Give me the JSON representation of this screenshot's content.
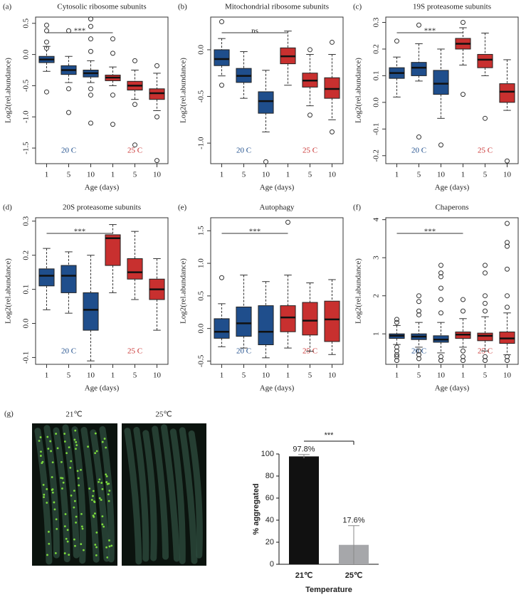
{
  "chart_data": [
    {
      "type": "box",
      "panel": "(a)",
      "title": "Cytosolic ribosome subunits",
      "xlabel": "Age (days)",
      "ylabel": "Log2(rel.abundance)",
      "annotation": "***",
      "categories": [
        "1",
        "5",
        "10",
        "1",
        "5",
        "10"
      ],
      "ylim": [
        -1.75,
        0.6
      ],
      "yticks": [
        -1.5,
        {
          "value": -1,
          "label": "-1.0"
        },
        -0.5,
        {
          "value": 0,
          "label": "0.0"
        },
        0.5
      ],
      "series": [
        {
          "name": "20 C",
          "color": "#1f4e8c",
          "boxes": [
            {
              "whislo": -0.27,
              "q1": -0.13,
              "med": -0.08,
              "q3": -0.03,
              "whishi": 0.13,
              "fliers": [
                0.47,
                0.38,
                0.2,
                0.1,
                -0.6
              ]
            },
            {
              "whislo": -0.45,
              "q1": -0.32,
              "med": -0.25,
              "q3": -0.18,
              "whishi": -0.03,
              "fliers": [
                0.38,
                -0.55,
                -0.93
              ]
            },
            {
              "whislo": -0.45,
              "q1": -0.36,
              "med": -0.3,
              "q3": -0.25,
              "whishi": -0.1,
              "fliers": [
                0.57,
                0.45,
                0.25,
                0.05,
                -0.55,
                -0.65,
                -1.1
              ]
            }
          ]
        },
        {
          "name": "25 C",
          "color": "#c8302f",
          "boxes": [
            {
              "whislo": -0.5,
              "q1": -0.42,
              "med": -0.37,
              "q3": -0.33,
              "whishi": -0.2,
              "fliers": [
                0.25,
                0.02,
                -0.65,
                -1.12
              ]
            },
            {
              "whislo": -0.72,
              "q1": -0.57,
              "med": -0.5,
              "q3": -0.43,
              "whishi": -0.25,
              "fliers": [
                -0.1,
                -0.8,
                -1.45
              ]
            },
            {
              "whislo": -0.9,
              "q1": -0.72,
              "med": -0.62,
              "q3": -0.55,
              "whishi": -0.3,
              "fliers": [
                -0.18,
                -1.0,
                -1.7
              ]
            }
          ]
        }
      ]
    },
    {
      "type": "box",
      "panel": "(b)",
      "title": "Mitochondrial ribosome subunits",
      "xlabel": "Age (days)",
      "ylabel": "Log2(rel.abundance)",
      "annotation": "ns",
      "categories": [
        "1",
        "5",
        "10",
        "1",
        "5",
        "10"
      ],
      "ylim": [
        -1.22,
        0.35
      ],
      "yticks": [
        {
          "value": -1,
          "label": "-1.0"
        },
        -0.5,
        {
          "value": 0,
          "label": "0.0"
        }
      ],
      "series": [
        {
          "name": "20 C",
          "color": "#1f4e8c",
          "boxes": [
            {
              "whislo": -0.28,
              "q1": -0.17,
              "med": -0.1,
              "q3": 0,
              "whishi": 0.12,
              "fliers": [
                0.3,
                -0.38
              ]
            },
            {
              "whislo": -0.52,
              "q1": -0.35,
              "med": -0.28,
              "q3": -0.2,
              "whishi": -0.02,
              "fliers": []
            },
            {
              "whislo": -0.88,
              "q1": -0.68,
              "med": -0.55,
              "q3": -0.45,
              "whishi": -0.22,
              "fliers": [
                -1.2
              ]
            }
          ]
        },
        {
          "name": "25 C",
          "color": "#c8302f",
          "boxes": [
            {
              "whislo": -0.38,
              "q1": -0.15,
              "med": -0.07,
              "q3": 0.02,
              "whishi": 0.2,
              "fliers": []
            },
            {
              "whislo": -0.6,
              "q1": -0.4,
              "med": -0.33,
              "q3": -0.25,
              "whishi": -0.05,
              "fliers": [
                0.0,
                -0.7
              ]
            },
            {
              "whislo": -0.75,
              "q1": -0.52,
              "med": -0.42,
              "q3": -0.3,
              "whishi": -0.05,
              "fliers": [
                0.08,
                -0.88
              ]
            }
          ]
        }
      ]
    },
    {
      "type": "box",
      "panel": "(c)",
      "title": "19S proteasome subunits",
      "xlabel": "Age (days)",
      "ylabel": "Log2(rel.abundance)",
      "annotation": "***",
      "categories": [
        "1",
        "5",
        "10",
        "1",
        "5",
        "10"
      ],
      "ylim": [
        -0.23,
        0.32
      ],
      "yticks": [
        -0.2,
        -0.1,
        {
          "value": 0,
          "label": "0.0"
        },
        0.1,
        0.2,
        0.3
      ],
      "series": [
        {
          "name": "20 C",
          "color": "#1f4e8c",
          "boxes": [
            {
              "whislo": 0.02,
              "q1": 0.09,
              "med": 0.11,
              "q3": 0.13,
              "whishi": 0.17,
              "fliers": [
                0.23
              ]
            },
            {
              "whislo": 0.08,
              "q1": 0.1,
              "med": 0.13,
              "q3": 0.15,
              "whishi": 0.22,
              "fliers": [
                0.29,
                -0.13
              ]
            },
            {
              "whislo": -0.06,
              "q1": 0.03,
              "med": 0.07,
              "q3": 0.12,
              "whishi": 0.2,
              "fliers": [
                -0.16
              ]
            }
          ]
        },
        {
          "name": "25 C",
          "color": "#c8302f",
          "boxes": [
            {
              "whislo": 0.14,
              "q1": 0.2,
              "med": 0.22,
              "q3": 0.24,
              "whishi": 0.28,
              "fliers": [
                0.3,
                0.03
              ]
            },
            {
              "whislo": 0.1,
              "q1": 0.13,
              "med": 0.16,
              "q3": 0.18,
              "whishi": 0.26,
              "fliers": [
                -0.06
              ]
            },
            {
              "whislo": -0.03,
              "q1": 0.0,
              "med": 0.04,
              "q3": 0.07,
              "whishi": 0.16,
              "fliers": [
                -0.22
              ]
            }
          ]
        }
      ]
    },
    {
      "type": "box",
      "panel": "(d)",
      "title": "20S proteasome subunits",
      "xlabel": "Age (days)",
      "ylabel": "Log2(rel.abundance)",
      "annotation": "***",
      "categories": [
        "1",
        "5",
        "10",
        "1",
        "5",
        "10"
      ],
      "ylim": [
        -0.12,
        0.31
      ],
      "yticks": [
        -0.1,
        {
          "value": 0,
          "label": "0.0"
        },
        0.1,
        0.2,
        0.3
      ],
      "series": [
        {
          "name": "20 C",
          "color": "#1f4e8c",
          "boxes": [
            {
              "whislo": 0.04,
              "q1": 0.11,
              "med": 0.14,
              "q3": 0.16,
              "whishi": 0.22,
              "fliers": []
            },
            {
              "whislo": 0.03,
              "q1": 0.09,
              "med": 0.14,
              "q3": 0.17,
              "whishi": 0.21,
              "fliers": []
            },
            {
              "whislo": -0.11,
              "q1": -0.02,
              "med": 0.04,
              "q3": 0.09,
              "whishi": 0.2,
              "fliers": []
            }
          ]
        },
        {
          "name": "25 C",
          "color": "#c8302f",
          "boxes": [
            {
              "whislo": 0.09,
              "q1": 0.17,
              "med": 0.25,
              "q3": 0.26,
              "whishi": 0.29,
              "fliers": []
            },
            {
              "whislo": 0.07,
              "q1": 0.13,
              "med": 0.15,
              "q3": 0.19,
              "whishi": 0.27,
              "fliers": []
            },
            {
              "whislo": -0.02,
              "q1": 0.07,
              "med": 0.1,
              "q3": 0.13,
              "whishi": 0.19,
              "fliers": []
            }
          ]
        }
      ]
    },
    {
      "type": "box",
      "panel": "(e)",
      "title": "Autophagy",
      "xlabel": "Age (days)",
      "ylabel": "Log2(rel.abundance)",
      "annotation": "***",
      "categories": [
        "1",
        "5",
        "10",
        "1",
        "5",
        "10"
      ],
      "ylim": [
        -0.55,
        1.7
      ],
      "yticks": [
        -0.5,
        {
          "value": 0,
          "label": "0.0"
        },
        0.5,
        {
          "value": 1,
          "label": "1.0"
        },
        1.5
      ],
      "series": [
        {
          "name": "20 C",
          "color": "#1f4e8c",
          "boxes": [
            {
              "whislo": -0.28,
              "q1": -0.15,
              "med": -0.05,
              "q3": 0.15,
              "whishi": 0.38,
              "fliers": [
                0.78
              ]
            },
            {
              "whislo": -0.3,
              "q1": -0.12,
              "med": 0.08,
              "q3": 0.33,
              "whishi": 0.82,
              "fliers": []
            },
            {
              "whislo": -0.45,
              "q1": -0.25,
              "med": -0.05,
              "q3": 0.35,
              "whishi": 0.72,
              "fliers": []
            }
          ]
        },
        {
          "name": "25 C",
          "color": "#c8302f",
          "boxes": [
            {
              "whislo": -0.3,
              "q1": -0.05,
              "med": 0.17,
              "q3": 0.35,
              "whishi": 0.82,
              "fliers": [
                1.63
              ]
            },
            {
              "whislo": -0.35,
              "q1": -0.1,
              "med": 0.12,
              "q3": 0.4,
              "whishi": 0.7,
              "fliers": []
            },
            {
              "whislo": -0.4,
              "q1": -0.2,
              "med": 0.14,
              "q3": 0.42,
              "whishi": 0.75,
              "fliers": []
            }
          ]
        }
      ]
    },
    {
      "type": "box",
      "panel": "(f)",
      "title": "Chaperons",
      "xlabel": "Age (days)",
      "ylabel": "Log2(rel.abundance)",
      "annotation": "***",
      "categories": [
        "1",
        "5",
        "10",
        "1",
        "5",
        "10"
      ],
      "ylim": [
        0.2,
        4.05
      ],
      "yticks": [
        1,
        2,
        3,
        4
      ],
      "series": [
        {
          "name": "20 C",
          "color": "#1f4e8c",
          "boxes": [
            {
              "whislo": 0.72,
              "q1": 0.88,
              "med": 0.95,
              "q3": 1.0,
              "whishi": 1.22,
              "fliers": [
                1.38,
                1.3,
                0.65,
                0.55,
                0.45,
                0.4,
                0.3
              ]
            },
            {
              "whislo": 0.65,
              "q1": 0.85,
              "med": 0.93,
              "q3": 1.0,
              "whishi": 1.3,
              "fliers": [
                2.0,
                1.85,
                1.6,
                1.5,
                0.55,
                0.45,
                0.35
              ]
            },
            {
              "whislo": 0.5,
              "q1": 0.78,
              "med": 0.85,
              "q3": 0.95,
              "whishi": 1.3,
              "fliers": [
                2.8,
                2.6,
                2.5,
                2.2,
                1.9,
                1.55,
                0.4,
                0.3
              ]
            }
          ]
        },
        {
          "name": "25 C",
          "color": "#c8302f",
          "boxes": [
            {
              "whislo": 0.65,
              "q1": 0.88,
              "med": 0.98,
              "q3": 1.05,
              "whishi": 1.4,
              "fliers": [
                1.9,
                1.6,
                0.55,
                0.4,
                0.3
              ]
            },
            {
              "whislo": 0.55,
              "q1": 0.82,
              "med": 0.95,
              "q3": 1.02,
              "whishi": 1.45,
              "fliers": [
                2.8,
                2.6,
                2.0,
                1.8,
                1.6,
                0.4,
                0.3
              ]
            },
            {
              "whislo": 0.45,
              "q1": 0.75,
              "med": 0.88,
              "q3": 1.05,
              "whishi": 1.55,
              "fliers": [
                3.9,
                3.4,
                3.3,
                2.7,
                2.0,
                1.7,
                0.4,
                0.3
              ]
            }
          ]
        }
      ]
    },
    {
      "type": "bar",
      "xlabel": "Temperature",
      "ylabel": "% aggregated",
      "annotation": "***",
      "categories": [
        "21℃",
        "25℃"
      ],
      "values": [
        97.8,
        17.6
      ],
      "value_labels": [
        "97.8%",
        "17.6%"
      ],
      "errors": [
        1.7,
        17.4
      ],
      "colors": [
        "#111111",
        "#a6a7aa"
      ],
      "ylim": [
        0,
        100
      ],
      "yticks": [
        0,
        20,
        40,
        60,
        80,
        100
      ]
    }
  ],
  "figure_g": {
    "panel": "(g)",
    "images": [
      {
        "label": "21℃"
      },
      {
        "label": "25℃"
      }
    ]
  }
}
